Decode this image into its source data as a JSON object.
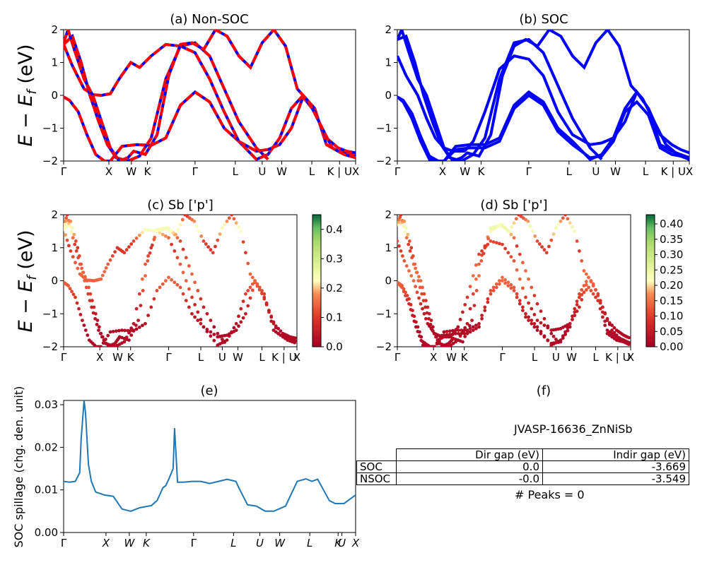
{
  "colors": {
    "soc_line": "#0000ff",
    "nsoc_line": "#ff0000",
    "spillage_line": "#1f77b4",
    "cmap_low": "#a50026",
    "cmap_mid": "#ffffbf",
    "cmap_high": "#006837"
  },
  "chart_data": [
    {
      "id": "a",
      "type": "line",
      "title": "(a) Non-SOC",
      "ylabel": "E − E_f (eV)",
      "ylim": [
        -2,
        2
      ],
      "yticks": [
        "2",
        "1",
        "0",
        "−1",
        "−2"
      ],
      "xticks": [
        "Γ",
        "X",
        "W",
        "K",
        "Γ",
        "L",
        "U",
        "W",
        "L",
        "K | U",
        "X"
      ],
      "series": [
        {
          "style": "solid-blue-with-red-dash",
          "x": [
            0,
            0.2,
            0.5,
            0.8,
            1.1,
            1.4,
            1.6,
            2.0,
            2.5,
            3.0,
            3.5,
            4.0,
            4.5,
            5.0,
            5.5,
            6.0,
            6.6,
            7.0,
            7.4,
            7.8,
            8.2,
            8.6,
            9.0,
            9.4,
            9.7,
            10.0
          ],
          "y": [
            -0.05,
            -0.15,
            -0.5,
            -1.2,
            -1.8,
            -2.0,
            -2.0,
            -1.55,
            -1.5,
            -1.52,
            -1.3,
            -0.3,
            0.1,
            -0.2,
            -1.0,
            -1.4,
            -1.95,
            -1.8,
            -1.3,
            -0.4,
            0.0,
            -0.4,
            -1.5,
            -1.7,
            -1.75,
            -1.85
          ]
        },
        {
          "style": "solid-blue-with-red-dash",
          "x": [
            0,
            0.3,
            0.7,
            1.0,
            1.3,
            1.6,
            1.9,
            2.3,
            2.6,
            3.0,
            3.5,
            4.0,
            4.5,
            5.0,
            5.5,
            6.0,
            6.6,
            7.0,
            7.4,
            7.8,
            8.2,
            8.6,
            9.0,
            9.4,
            9.7,
            10.0
          ],
          "y": [
            1.55,
            0.9,
            0.2,
            0.02,
            0.0,
            0.05,
            0.5,
            1.0,
            0.85,
            1.2,
            1.55,
            1.5,
            1.3,
            0.5,
            -0.5,
            -1.4,
            -1.7,
            -1.65,
            -1.5,
            -1.0,
            -0.05,
            -0.5,
            -1.3,
            -1.6,
            -1.7,
            -1.75
          ]
        },
        {
          "style": "solid-blue-with-red-dash",
          "x": [
            0,
            0.3,
            0.6,
            0.9,
            1.2,
            1.5,
            1.8,
            2.2,
            2.6,
            3.0,
            3.5,
            4.0,
            4.5,
            5.0,
            5.5,
            6.0,
            6.6,
            7.0
          ],
          "y": [
            1.55,
            1.8,
            1.0,
            0.0,
            -0.8,
            -1.5,
            -1.9,
            -2.0,
            -1.85,
            -1.3,
            0.5,
            1.5,
            1.6,
            1.2,
            0.2,
            -0.8,
            -1.6,
            -1.95
          ]
        },
        {
          "style": "solid-blue-with-red-dash",
          "x": [
            0,
            0.15,
            0.4,
            0.7,
            1.0,
            1.3,
            1.6,
            1.9,
            2.2,
            2.4,
            2.8,
            3.2,
            3.6,
            4.0,
            4.4,
            4.8,
            5.2,
            5.6,
            6.0,
            6.4,
            6.8,
            7.2,
            7.6,
            8.0,
            8.4,
            8.8,
            9.2,
            9.6,
            10.0
          ],
          "y": [
            1.6,
            2.0,
            1.3,
            0.5,
            0.0,
            -0.8,
            -1.6,
            -2.0,
            -1.9,
            -1.7,
            -1.8,
            -1.2,
            0.6,
            1.55,
            1.6,
            1.4,
            2.0,
            1.8,
            1.2,
            0.85,
            1.6,
            2.0,
            1.5,
            0.2,
            -0.2,
            -0.9,
            -1.6,
            -1.8,
            -1.9
          ]
        }
      ]
    },
    {
      "id": "b",
      "type": "line",
      "title": "(b) SOC",
      "ylim": [
        -2,
        2
      ],
      "yticks": [
        "2",
        "1",
        "0",
        "−1",
        "−2"
      ],
      "xticks": [
        "Γ",
        "X",
        "W",
        "K",
        "Γ",
        "L",
        "U",
        "W",
        "L",
        "K | U",
        "X"
      ],
      "series": [
        {
          "x": [
            0,
            0.2,
            0.5,
            0.8,
            1.1,
            1.4,
            1.6,
            2.0,
            2.5,
            3.0,
            3.5,
            4.0,
            4.5,
            5.0,
            5.5,
            6.0,
            6.6,
            7.0,
            7.4,
            7.8,
            8.2,
            8.6,
            9.0,
            9.4,
            9.7,
            10.0
          ],
          "y": [
            -0.05,
            -0.15,
            -0.55,
            -1.25,
            -1.85,
            -2.0,
            -2.0,
            -1.55,
            -1.5,
            -1.5,
            -1.3,
            -0.3,
            0.1,
            -0.2,
            -1.0,
            -1.4,
            -1.95,
            -1.8,
            -1.3,
            -0.4,
            0.1,
            -0.4,
            -1.5,
            -1.7,
            -1.8,
            -1.9
          ]
        },
        {
          "x": [
            0,
            0.2,
            0.5,
            0.8,
            1.1,
            1.4,
            1.6,
            2.0,
            2.5,
            3.0,
            3.5,
            4.0,
            4.5,
            5.0,
            5.5,
            6.0,
            6.6,
            7.0,
            7.4,
            7.8,
            8.2,
            8.6,
            9.0,
            9.4,
            9.7,
            10.0
          ],
          "y": [
            -0.05,
            -0.2,
            -0.7,
            -1.4,
            -1.95,
            -2.0,
            -2.0,
            -1.65,
            -1.6,
            -1.6,
            -1.4,
            -0.4,
            0.0,
            -0.3,
            -1.1,
            -1.5,
            -1.9,
            -1.85,
            -1.4,
            -0.5,
            -0.2,
            -0.6,
            -1.6,
            -1.8,
            -1.85,
            -1.95
          ]
        },
        {
          "x": [
            0,
            0.3,
            0.7,
            1.0,
            1.3,
            1.6,
            1.9,
            2.3,
            2.6,
            3.0,
            3.5,
            4.0,
            4.5,
            5.0,
            5.5,
            6.0,
            6.6,
            7.0,
            7.4,
            7.8,
            8.2,
            8.6,
            9.0,
            9.4,
            9.7,
            10.0
          ],
          "y": [
            1.2,
            0.6,
            0.0,
            -0.7,
            -1.3,
            -1.6,
            -1.7,
            -1.7,
            -1.4,
            -0.5,
            0.8,
            1.2,
            1.1,
            0.6,
            -0.5,
            -1.2,
            -1.5,
            -1.45,
            -1.3,
            -0.8,
            0.1,
            -0.4,
            -1.2,
            -1.5,
            -1.65,
            -1.75
          ]
        },
        {
          "x": [
            0,
            0.3,
            0.6,
            0.9,
            1.2,
            1.5,
            1.8,
            2.2,
            2.6,
            3.0,
            3.5,
            4.0,
            4.5,
            5.0,
            5.5,
            6.0,
            6.6,
            7.0
          ],
          "y": [
            1.7,
            1.8,
            1.0,
            0.0,
            -0.8,
            -1.5,
            -1.9,
            -2.0,
            -1.8,
            -1.3,
            0.5,
            1.6,
            1.7,
            1.3,
            0.3,
            -0.7,
            -1.6,
            -1.95
          ]
        },
        {
          "x": [
            0,
            0.15,
            0.4,
            0.7,
            1.0,
            1.3,
            1.6,
            1.9,
            2.2,
            2.4,
            2.8,
            3.2,
            3.6,
            4.0,
            4.4,
            4.8,
            5.2,
            5.6,
            6.0,
            6.4,
            6.8,
            7.2,
            7.6,
            8.0,
            8.4,
            8.8,
            9.2,
            9.6,
            10.0
          ],
          "y": [
            1.7,
            2.0,
            1.3,
            0.5,
            0.0,
            -0.8,
            -1.6,
            -2.0,
            -1.9,
            -1.75,
            -1.85,
            -1.2,
            0.6,
            1.5,
            1.7,
            1.5,
            2.0,
            1.8,
            1.2,
            0.85,
            1.6,
            2.0,
            1.5,
            0.3,
            -0.1,
            -0.8,
            -1.5,
            -1.8,
            -1.95
          ]
        }
      ]
    },
    {
      "id": "c",
      "type": "scatter",
      "title": "(c)  Sb ['p']",
      "ylabel": "E − E_f (eV)",
      "ylim": [
        -2,
        2
      ],
      "yticks": [
        "2",
        "1",
        "0",
        "−1",
        "−2"
      ],
      "xticks": [
        "Γ",
        "X",
        "W",
        "K",
        "Γ",
        "L",
        "U",
        "W",
        "L",
        "K | U",
        "X"
      ],
      "colorbar": {
        "range": [
          0.0,
          0.45
        ],
        "ticks": [
          "0.4",
          "0.3",
          "0.2",
          "0.1",
          "0.0"
        ],
        "tick_values": [
          0.4,
          0.3,
          0.2,
          0.1,
          0.0
        ]
      }
    },
    {
      "id": "d",
      "type": "scatter",
      "title": "(d) Sb ['p']",
      "ylim": [
        -2,
        2
      ],
      "yticks": [
        "2",
        "1",
        "0",
        "−1",
        "−2"
      ],
      "xticks": [
        "Γ",
        "X",
        "W",
        "K",
        "Γ",
        "L",
        "U",
        "W",
        "L",
        "K | U",
        "X"
      ],
      "colorbar": {
        "range": [
          0.0,
          0.43
        ],
        "ticks": [
          "0.40",
          "0.35",
          "0.30",
          "0.25",
          "0.20",
          "0.15",
          "0.10",
          "0.05",
          "0.00"
        ],
        "tick_values": [
          0.4,
          0.35,
          0.3,
          0.25,
          0.2,
          0.15,
          0.1,
          0.05,
          0.0
        ]
      }
    },
    {
      "id": "e",
      "type": "line",
      "title": "(e)",
      "ylabel": "SOC spillage (chg. den. unit)",
      "ylim": [
        0,
        0.031
      ],
      "yticks": [
        "0.03",
        "0.02",
        "0.01",
        "0.00"
      ],
      "ytick_values": [
        0.03,
        0.02,
        0.01,
        0.0
      ],
      "xticks": [
        "Γ",
        "X",
        "W",
        "K",
        "Γ",
        "L",
        "U",
        "W",
        "L",
        "K",
        "U",
        "X"
      ],
      "series": [
        {
          "x": [
            0,
            0.2,
            0.4,
            0.55,
            0.6,
            0.7,
            0.75,
            0.85,
            0.95,
            1.1,
            1.4,
            1.7,
            2.0,
            2.3,
            2.6,
            2.9,
            3.0,
            3.2,
            3.4,
            3.5,
            3.6,
            3.75,
            3.8,
            3.9,
            4.1,
            4.4,
            4.7,
            5.0,
            5.3,
            5.6,
            5.9,
            6.0,
            6.3,
            6.6,
            6.9,
            7.2,
            7.6,
            8.0,
            8.3,
            8.5,
            8.7,
            8.9,
            9.1,
            9.3,
            9.6,
            9.8,
            10.0
          ],
          "y": [
            0.012,
            0.0118,
            0.012,
            0.014,
            0.022,
            0.031,
            0.028,
            0.016,
            0.012,
            0.0095,
            0.0088,
            0.0085,
            0.0055,
            0.005,
            0.0058,
            0.0062,
            0.0063,
            0.0075,
            0.0105,
            0.011,
            0.0125,
            0.015,
            0.0245,
            0.0118,
            0.0118,
            0.012,
            0.012,
            0.0115,
            0.012,
            0.0125,
            0.012,
            0.0105,
            0.0065,
            0.0062,
            0.005,
            0.005,
            0.0062,
            0.012,
            0.0126,
            0.012,
            0.0125,
            0.01,
            0.0075,
            0.0068,
            0.0068,
            0.0078,
            0.0088
          ]
        }
      ]
    }
  ],
  "info": {
    "title": "(f)",
    "material": "JVASP-16636_ZnNiSb",
    "table": {
      "headers": [
        "",
        "Dir gap (eV)",
        "Indir gap (eV)"
      ],
      "rows": [
        [
          "SOC",
          "0.0",
          "-3.669"
        ],
        [
          "NSOC",
          "-0.0",
          "-3.549"
        ]
      ]
    },
    "peaks": "# Peaks = 0"
  }
}
